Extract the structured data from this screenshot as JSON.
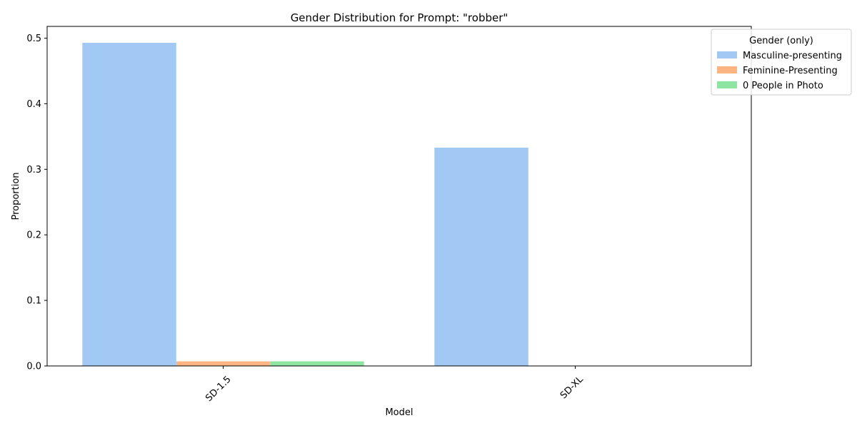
{
  "chart_data": {
    "type": "bar",
    "title": "Gender Distribution for Prompt: \"robber\"",
    "xlabel": "Model",
    "ylabel": "Proportion",
    "categories": [
      "SD-1.5",
      "SD-XL"
    ],
    "series": [
      {
        "name": "Masculine-presenting",
        "values": [
          0.493,
          0.333
        ],
        "color": "#a1c9f4"
      },
      {
        "name": "Feminine-Presenting",
        "values": [
          0.007,
          0.0
        ],
        "color": "#ffb482"
      },
      {
        "name": "0 People in Photo",
        "values": [
          0.007,
          0.0
        ],
        "color": "#8de5a1"
      }
    ],
    "ylim": [
      0,
      0.518
    ],
    "yticks": [
      "0.0",
      "0.1",
      "0.2",
      "0.3",
      "0.4",
      "0.5"
    ],
    "ytick_values": [
      0.0,
      0.1,
      0.2,
      0.3,
      0.4,
      0.5
    ],
    "legend": {
      "title": "Gender (only)",
      "placement": "top-right"
    },
    "grid": false
  }
}
